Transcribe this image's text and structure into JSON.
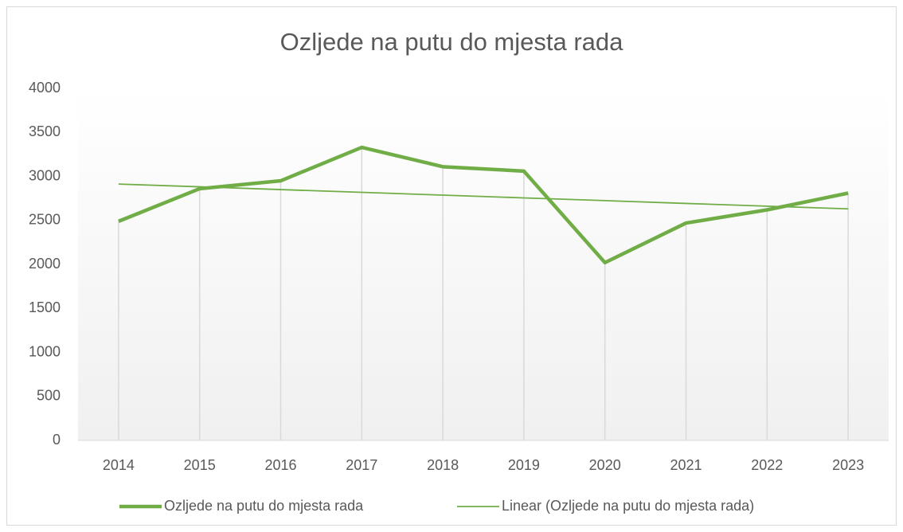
{
  "chart_data": {
    "type": "line",
    "title": "Ozljede na putu do mjesta rada",
    "categories": [
      "2014",
      "2015",
      "2016",
      "2017",
      "2018",
      "2019",
      "2020",
      "2021",
      "2022",
      "2023"
    ],
    "series": [
      {
        "name": "Ozljede na putu do mjesta rada",
        "color": "#70ad47",
        "values": [
          2490,
          2860,
          2950,
          3330,
          3110,
          3060,
          2020,
          2470,
          2620,
          2810
        ]
      },
      {
        "name": "Linear (Ozljede na putu do mjesta rada)",
        "color": "#70ad47",
        "values": [
          2913,
          2882,
          2850,
          2819,
          2787,
          2756,
          2725,
          2693,
          2662,
          2631
        ]
      }
    ],
    "ylim": [
      0,
      4000
    ],
    "yticks": [
      0,
      500,
      1000,
      1500,
      2000,
      2500,
      3000,
      3500,
      4000
    ],
    "drop_lines": true
  }
}
